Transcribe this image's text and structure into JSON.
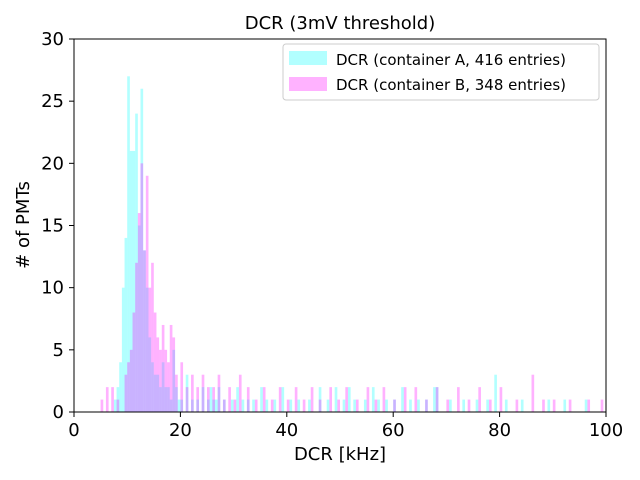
{
  "chart_data": {
    "type": "bar",
    "title": "DCR (3mV threshold)",
    "xlabel": "DCR [kHz]",
    "ylabel": "# of PMTs",
    "xlim": [
      0,
      100
    ],
    "ylim": [
      0,
      30
    ],
    "xticks": [
      "0",
      "20",
      "40",
      "60",
      "80",
      "100"
    ],
    "yticks": [
      "0",
      "5",
      "10",
      "15",
      "20",
      "25",
      "30"
    ],
    "grid": false,
    "legend_position": "top-right",
    "bin_width": 0.5,
    "series": [
      {
        "name": "DCR (container A, 416 entries)",
        "color": "#00ffff",
        "opacity": 0.3,
        "bins": [
          [
            7.5,
            1
          ],
          [
            8.0,
            2
          ],
          [
            8.5,
            4
          ],
          [
            9.0,
            10
          ],
          [
            9.5,
            14
          ],
          [
            10.0,
            27
          ],
          [
            10.5,
            21
          ],
          [
            11.0,
            21
          ],
          [
            11.5,
            24
          ],
          [
            12.0,
            15
          ],
          [
            12.5,
            26
          ],
          [
            13.0,
            13
          ],
          [
            13.5,
            10
          ],
          [
            14.0,
            6
          ],
          [
            14.5,
            4
          ],
          [
            15.0,
            3
          ],
          [
            15.5,
            3
          ],
          [
            16.0,
            2
          ],
          [
            16.5,
            4
          ],
          [
            17.0,
            2
          ],
          [
            17.5,
            2
          ],
          [
            18.0,
            1
          ],
          [
            18.5,
            5
          ],
          [
            19.0,
            2
          ],
          [
            19.5,
            1
          ],
          [
            20.0,
            1
          ],
          [
            21.0,
            3
          ],
          [
            22.0,
            1
          ],
          [
            23.0,
            1
          ],
          [
            24.0,
            2
          ],
          [
            25.0,
            1
          ],
          [
            25.5,
            2
          ],
          [
            26.0,
            1
          ],
          [
            26.5,
            1
          ],
          [
            27.0,
            2
          ],
          [
            28.0,
            1
          ],
          [
            29.5,
            1
          ],
          [
            30.5,
            2
          ],
          [
            31.5,
            1
          ],
          [
            32.5,
            1
          ],
          [
            33.5,
            1
          ],
          [
            35.0,
            2
          ],
          [
            36.0,
            1
          ],
          [
            37.5,
            1
          ],
          [
            39.0,
            2
          ],
          [
            40.5,
            1
          ],
          [
            42.0,
            1
          ],
          [
            44.0,
            1
          ],
          [
            46.0,
            2
          ],
          [
            47.5,
            1
          ],
          [
            49.0,
            2
          ],
          [
            50.5,
            1
          ],
          [
            51.5,
            2
          ],
          [
            52.5,
            1
          ],
          [
            54.5,
            1
          ],
          [
            56.0,
            2
          ],
          [
            57.0,
            1
          ],
          [
            58.5,
            1
          ],
          [
            60.0,
            1
          ],
          [
            61.5,
            2
          ],
          [
            63.0,
            1
          ],
          [
            64.5,
            1
          ],
          [
            66.0,
            1
          ],
          [
            67.5,
            2
          ],
          [
            68.0,
            2
          ],
          [
            70.5,
            1
          ],
          [
            73.0,
            1
          ],
          [
            75.5,
            1
          ],
          [
            77.5,
            1
          ],
          [
            79.0,
            3
          ],
          [
            81.0,
            1
          ],
          [
            84.0,
            1
          ],
          [
            89.0,
            1
          ],
          [
            92.0,
            1
          ],
          [
            96.0,
            1
          ]
        ]
      },
      {
        "name": "DCR (container B, 348 entries)",
        "color": "#ff00ff",
        "opacity": 0.3,
        "bins": [
          [
            5.0,
            1
          ],
          [
            6.0,
            2
          ],
          [
            7.0,
            2
          ],
          [
            8.0,
            1
          ],
          [
            9.5,
            3
          ],
          [
            10.0,
            4
          ],
          [
            10.5,
            5
          ],
          [
            11.0,
            8
          ],
          [
            11.5,
            12
          ],
          [
            12.0,
            16
          ],
          [
            12.5,
            20
          ],
          [
            13.0,
            13
          ],
          [
            13.5,
            19
          ],
          [
            14.0,
            10
          ],
          [
            14.5,
            12
          ],
          [
            15.0,
            8
          ],
          [
            15.5,
            6
          ],
          [
            16.0,
            5
          ],
          [
            16.5,
            7
          ],
          [
            17.0,
            5
          ],
          [
            17.5,
            4
          ],
          [
            18.0,
            7
          ],
          [
            18.5,
            6
          ],
          [
            19.0,
            3
          ],
          [
            20.0,
            4
          ],
          [
            21.0,
            2
          ],
          [
            22.0,
            3
          ],
          [
            23.0,
            2
          ],
          [
            24.0,
            3
          ],
          [
            25.0,
            2
          ],
          [
            26.0,
            2
          ],
          [
            27.0,
            3
          ],
          [
            28.0,
            1
          ],
          [
            29.0,
            2
          ],
          [
            30.0,
            1
          ],
          [
            31.0,
            3
          ],
          [
            32.5,
            2
          ],
          [
            34.0,
            1
          ],
          [
            35.5,
            2
          ],
          [
            37.0,
            1
          ],
          [
            38.5,
            2
          ],
          [
            40.0,
            1
          ],
          [
            41.5,
            2
          ],
          [
            43.0,
            1
          ],
          [
            44.5,
            2
          ],
          [
            46.0,
            1
          ],
          [
            48.0,
            2
          ],
          [
            49.5,
            1
          ],
          [
            51.0,
            2
          ],
          [
            53.0,
            1
          ],
          [
            55.0,
            2
          ],
          [
            56.5,
            1
          ],
          [
            58.0,
            2
          ],
          [
            60.0,
            1
          ],
          [
            62.0,
            2
          ],
          [
            64.0,
            2
          ],
          [
            66.0,
            1
          ],
          [
            68.0,
            2
          ],
          [
            70.0,
            1
          ],
          [
            72.0,
            2
          ],
          [
            74.0,
            1
          ],
          [
            76.0,
            2
          ],
          [
            78.0,
            1
          ],
          [
            80.0,
            2
          ],
          [
            83.0,
            1
          ],
          [
            86.0,
            3
          ],
          [
            88.0,
            1
          ],
          [
            90.0,
            1
          ],
          [
            93.0,
            1
          ],
          [
            96.5,
            1
          ],
          [
            99.0,
            1
          ]
        ]
      }
    ]
  }
}
